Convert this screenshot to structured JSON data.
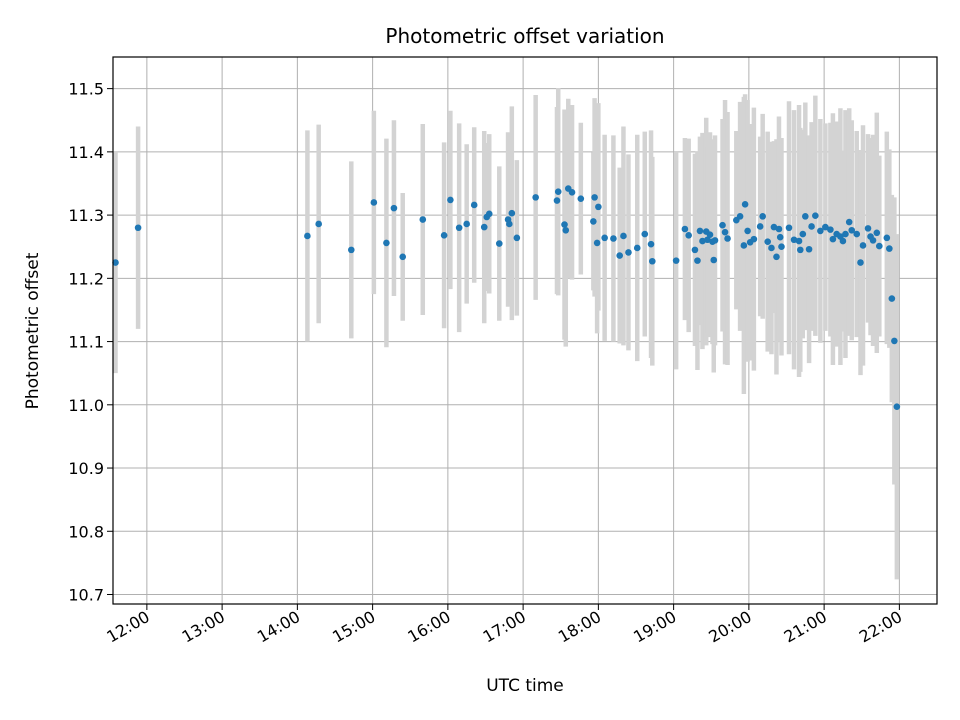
{
  "chart_data": {
    "type": "scatter",
    "title": "Photometric offset variation",
    "xlabel": "UTC time",
    "ylabel": "Photometric offset",
    "xlim": [
      "11:33",
      "22:30"
    ],
    "ylim": [
      10.685,
      11.55
    ],
    "grid": true,
    "x_ticks": [
      "12:00",
      "13:00",
      "14:00",
      "15:00",
      "16:00",
      "17:00",
      "18:00",
      "19:00",
      "20:00",
      "21:00",
      "22:00"
    ],
    "y_ticks": [
      10.7,
      10.8,
      10.9,
      11.0,
      11.1,
      11.2,
      11.3,
      11.4,
      11.5
    ],
    "y_tick_labels": [
      "10.7",
      "10.8",
      "10.9",
      "11.0",
      "11.1",
      "11.2",
      "11.3",
      "11.4",
      "11.5"
    ],
    "colors": {
      "points": "#1f77b4",
      "errorbars": "#d3d3d3",
      "grid": "#b0b0b0"
    },
    "series": [
      {
        "values_columns": [
          "time",
          "offset",
          "error"
        ],
        "points": [
          [
            "11:35",
            11.225,
            0.175
          ],
          [
            "11:53",
            11.28,
            0.16
          ],
          [
            "14:08",
            11.267,
            0.167
          ],
          [
            "14:17",
            11.286,
            0.157
          ],
          [
            "14:43",
            11.245,
            0.14
          ],
          [
            "15:01",
            11.32,
            0.145
          ],
          [
            "15:11",
            11.256,
            0.165
          ],
          [
            "15:17",
            11.311,
            0.139
          ],
          [
            "15:24",
            11.234,
            0.101
          ],
          [
            "15:40",
            11.293,
            0.151
          ],
          [
            "15:57",
            11.268,
            0.147
          ],
          [
            "16:02",
            11.324,
            0.141
          ],
          [
            "16:09",
            11.28,
            0.165
          ],
          [
            "16:15",
            11.286,
            0.126
          ],
          [
            "16:21",
            11.316,
            0.123
          ],
          [
            "16:29",
            11.281,
            0.152
          ],
          [
            "16:31",
            11.297,
            0.117
          ],
          [
            "16:33",
            11.302,
            0.126
          ],
          [
            "16:41",
            11.255,
            0.122
          ],
          [
            "16:48",
            11.293,
            0.138
          ],
          [
            "16:49",
            11.286,
            0.113
          ],
          [
            "16:51",
            11.303,
            0.169
          ],
          [
            "16:55",
            11.264,
            0.123
          ],
          [
            "17:10",
            11.328,
            0.162
          ],
          [
            "17:27",
            11.323,
            0.148
          ],
          [
            "17:28",
            11.337,
            0.164
          ],
          [
            "17:33",
            11.285,
            0.182
          ],
          [
            "17:34",
            11.276,
            0.184
          ],
          [
            "17:36",
            11.342,
            0.142
          ],
          [
            "17:39",
            11.336,
            0.138
          ],
          [
            "17:46",
            11.326,
            0.12
          ],
          [
            "17:56",
            11.29,
            0.109
          ],
          [
            "17:57",
            11.328,
            0.157
          ],
          [
            "17:59",
            11.256,
            0.143
          ],
          [
            "18:00",
            11.313,
            0.164
          ],
          [
            "18:05",
            11.264,
            0.163
          ],
          [
            "18:12",
            11.263,
            0.163
          ],
          [
            "18:17",
            11.236,
            0.139
          ],
          [
            "18:20",
            11.267,
            0.173
          ],
          [
            "18:24",
            11.241,
            0.155
          ],
          [
            "18:31",
            11.248,
            0.179
          ],
          [
            "18:37",
            11.27,
            0.162
          ],
          [
            "18:42",
            11.254,
            0.18
          ],
          [
            "18:43",
            11.227,
            0.165
          ],
          [
            "19:02",
            11.228,
            0.172
          ],
          [
            "19:09",
            11.278,
            0.144
          ],
          [
            "19:12",
            11.268,
            0.153
          ],
          [
            "19:17",
            11.245,
            0.152
          ],
          [
            "19:19",
            11.228,
            0.173
          ],
          [
            "19:21",
            11.275,
            0.149
          ],
          [
            "19:23",
            11.259,
            0.171
          ],
          [
            "19:26",
            11.274,
            0.18
          ],
          [
            "19:27",
            11.261,
            0.147
          ],
          [
            "19:29",
            11.269,
            0.162
          ],
          [
            "19:31",
            11.258,
            0.162
          ],
          [
            "19:32",
            11.229,
            0.178
          ],
          [
            "19:33",
            11.26,
            0.166
          ],
          [
            "19:39",
            11.284,
            0.168
          ],
          [
            "19:41",
            11.273,
            0.209
          ],
          [
            "19:43",
            11.263,
            0.2
          ],
          [
            "19:50",
            11.292,
            0.141
          ],
          [
            "19:53",
            11.298,
            0.181
          ],
          [
            "19:56",
            11.252,
            0.235
          ],
          [
            "19:57",
            11.317,
            0.174
          ],
          [
            "19:59",
            11.275,
            0.207
          ],
          [
            "20:01",
            11.257,
            0.187
          ],
          [
            "20:04",
            11.262,
            0.208
          ],
          [
            "20:09",
            11.282,
            0.142
          ],
          [
            "20:11",
            11.298,
            0.162
          ],
          [
            "20:15",
            11.258,
            0.174
          ],
          [
            "20:18",
            11.248,
            0.168
          ],
          [
            "20:20",
            11.281,
            0.136
          ],
          [
            "20:22",
            11.234,
            0.186
          ],
          [
            "20:24",
            11.278,
            0.178
          ],
          [
            "20:25",
            11.265,
            0.157
          ],
          [
            "20:26",
            11.25,
            0.172
          ],
          [
            "20:32",
            11.28,
            0.2
          ],
          [
            "20:36",
            11.261,
            0.205
          ],
          [
            "20:40",
            11.259,
            0.215
          ],
          [
            "20:41",
            11.245,
            0.193
          ],
          [
            "20:43",
            11.27,
            0.165
          ],
          [
            "20:45",
            11.298,
            0.18
          ],
          [
            "20:48",
            11.246,
            0.18
          ],
          [
            "20:50",
            11.282,
            0.165
          ],
          [
            "20:53",
            11.299,
            0.19
          ],
          [
            "20:57",
            11.275,
            0.177
          ],
          [
            "21:01",
            11.281,
            0.164
          ],
          [
            "21:05",
            11.277,
            0.169
          ],
          [
            "21:07",
            11.262,
            0.199
          ],
          [
            "21:10",
            11.27,
            0.178
          ],
          [
            "21:13",
            11.266,
            0.203
          ],
          [
            "21:15",
            11.259,
            0.143
          ],
          [
            "21:17",
            11.27,
            0.196
          ],
          [
            "21:20",
            11.289,
            0.18
          ],
          [
            "21:22",
            11.276,
            0.174
          ],
          [
            "21:26",
            11.27,
            0.163
          ],
          [
            "21:29",
            11.225,
            0.178
          ],
          [
            "21:31",
            11.252,
            0.19
          ],
          [
            "21:35",
            11.279,
            0.149
          ],
          [
            "21:37",
            11.266,
            0.156
          ],
          [
            "21:39",
            11.26,
            0.167
          ],
          [
            "21:42",
            11.272,
            0.19
          ],
          [
            "21:44",
            11.251,
            0.143
          ],
          [
            "21:50",
            11.264,
            0.168
          ],
          [
            "21:52",
            11.247,
            0.157
          ],
          [
            "21:54",
            11.168,
            0.164
          ],
          [
            "21:56",
            11.101,
            0.227
          ],
          [
            "21:58",
            10.997,
            0.273
          ]
        ]
      }
    ]
  }
}
